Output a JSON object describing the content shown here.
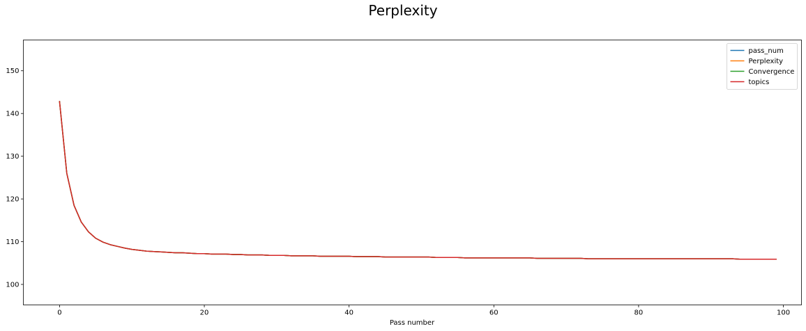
{
  "chart_data": {
    "type": "line",
    "title": "Perplexity",
    "xlabel": "Pass number",
    "ylabel": "",
    "xlim": [
      -5,
      102.5
    ],
    "ylim": [
      95.2,
      157.2
    ],
    "xticks": [
      0,
      20,
      40,
      60,
      80,
      100
    ],
    "yticks": [
      100,
      110,
      120,
      130,
      140,
      150
    ],
    "grid": false,
    "legend_position": "top-right",
    "x": [
      0,
      1,
      2,
      3,
      4,
      5,
      6,
      7,
      8,
      9,
      10,
      11,
      12,
      13,
      14,
      15,
      16,
      17,
      18,
      19,
      20,
      21,
      22,
      23,
      24,
      25,
      26,
      27,
      28,
      29,
      30,
      31,
      32,
      33,
      34,
      35,
      36,
      37,
      38,
      39,
      40,
      41,
      42,
      43,
      44,
      45,
      46,
      47,
      48,
      49,
      50,
      51,
      52,
      53,
      54,
      55,
      56,
      57,
      58,
      59,
      60,
      61,
      62,
      63,
      64,
      65,
      66,
      67,
      68,
      69,
      70,
      71,
      72,
      73,
      74,
      75,
      76,
      77,
      78,
      79,
      80,
      81,
      82,
      83,
      84,
      85,
      86,
      87,
      88,
      89,
      90,
      91,
      92,
      93,
      94,
      95,
      96,
      97,
      98,
      99
    ],
    "series": [
      {
        "name": "pass_num",
        "color": "#1f77b4",
        "values": [
          142.8,
          126.0,
          118.5,
          114.6,
          112.3,
          110.8,
          109.9,
          109.3,
          108.9,
          108.5,
          108.2,
          108.0,
          107.8,
          107.7,
          107.6,
          107.5,
          107.4,
          107.4,
          107.3,
          107.2,
          107.2,
          107.1,
          107.1,
          107.1,
          107.0,
          107.0,
          106.9,
          106.9,
          106.9,
          106.8,
          106.8,
          106.8,
          106.7,
          106.7,
          106.7,
          106.7,
          106.6,
          106.6,
          106.6,
          106.6,
          106.6,
          106.5,
          106.5,
          106.5,
          106.5,
          106.4,
          106.4,
          106.4,
          106.4,
          106.4,
          106.4,
          106.4,
          106.3,
          106.3,
          106.3,
          106.3,
          106.2,
          106.2,
          106.2,
          106.2,
          106.2,
          106.2,
          106.2,
          106.2,
          106.2,
          106.2,
          106.1,
          106.1,
          106.1,
          106.1,
          106.1,
          106.1,
          106.1,
          106.0,
          106.0,
          106.0,
          106.0,
          106.0,
          106.0,
          106.0,
          106.0,
          106.0,
          106.0,
          106.0,
          106.0,
          106.0,
          106.0,
          106.0,
          106.0,
          106.0,
          106.0,
          106.0,
          106.0,
          106.0,
          105.9,
          105.9,
          105.9,
          105.9,
          105.9,
          105.9
        ]
      },
      {
        "name": "Perplexity",
        "color": "#ff7f0e",
        "values": [
          142.8,
          126.0,
          118.5,
          114.6,
          112.3,
          110.8,
          109.9,
          109.3,
          108.9,
          108.5,
          108.2,
          108.0,
          107.8,
          107.7,
          107.6,
          107.5,
          107.4,
          107.4,
          107.3,
          107.2,
          107.2,
          107.1,
          107.1,
          107.1,
          107.0,
          107.0,
          106.9,
          106.9,
          106.9,
          106.8,
          106.8,
          106.8,
          106.7,
          106.7,
          106.7,
          106.7,
          106.6,
          106.6,
          106.6,
          106.6,
          106.6,
          106.5,
          106.5,
          106.5,
          106.5,
          106.4,
          106.4,
          106.4,
          106.4,
          106.4,
          106.4,
          106.4,
          106.3,
          106.3,
          106.3,
          106.3,
          106.2,
          106.2,
          106.2,
          106.2,
          106.2,
          106.2,
          106.2,
          106.2,
          106.2,
          106.2,
          106.1,
          106.1,
          106.1,
          106.1,
          106.1,
          106.1,
          106.1,
          106.0,
          106.0,
          106.0,
          106.0,
          106.0,
          106.0,
          106.0,
          106.0,
          106.0,
          106.0,
          106.0,
          106.0,
          106.0,
          106.0,
          106.0,
          106.0,
          106.0,
          106.0,
          106.0,
          106.0,
          106.0,
          105.9,
          105.9,
          105.9,
          105.9,
          105.9,
          105.9
        ]
      },
      {
        "name": "Convergence",
        "color": "#2ca02c",
        "values": [
          142.8,
          126.0,
          118.5,
          114.6,
          112.3,
          110.8,
          109.9,
          109.3,
          108.9,
          108.5,
          108.2,
          108.0,
          107.8,
          107.7,
          107.6,
          107.5,
          107.4,
          107.4,
          107.3,
          107.2,
          107.2,
          107.1,
          107.1,
          107.1,
          107.0,
          107.0,
          106.9,
          106.9,
          106.9,
          106.8,
          106.8,
          106.8,
          106.7,
          106.7,
          106.7,
          106.7,
          106.6,
          106.6,
          106.6,
          106.6,
          106.6,
          106.5,
          106.5,
          106.5,
          106.5,
          106.4,
          106.4,
          106.4,
          106.4,
          106.4,
          106.4,
          106.4,
          106.3,
          106.3,
          106.3,
          106.3,
          106.2,
          106.2,
          106.2,
          106.2,
          106.2,
          106.2,
          106.2,
          106.2,
          106.2,
          106.2,
          106.1,
          106.1,
          106.1,
          106.1,
          106.1,
          106.1,
          106.1,
          106.0,
          106.0,
          106.0,
          106.0,
          106.0,
          106.0,
          106.0,
          106.0,
          106.0,
          106.0,
          106.0,
          106.0,
          106.0,
          106.0,
          106.0,
          106.0,
          106.0,
          106.0,
          106.0,
          106.0,
          106.0,
          105.9,
          105.9,
          105.9,
          105.9,
          105.9,
          105.9
        ]
      },
      {
        "name": "topics",
        "color": "#d62728",
        "values": [
          142.8,
          126.0,
          118.5,
          114.6,
          112.3,
          110.8,
          109.9,
          109.3,
          108.9,
          108.5,
          108.2,
          108.0,
          107.8,
          107.7,
          107.6,
          107.5,
          107.4,
          107.4,
          107.3,
          107.2,
          107.2,
          107.1,
          107.1,
          107.1,
          107.0,
          107.0,
          106.9,
          106.9,
          106.9,
          106.8,
          106.8,
          106.8,
          106.7,
          106.7,
          106.7,
          106.7,
          106.6,
          106.6,
          106.6,
          106.6,
          106.6,
          106.5,
          106.5,
          106.5,
          106.5,
          106.4,
          106.4,
          106.4,
          106.4,
          106.4,
          106.4,
          106.4,
          106.3,
          106.3,
          106.3,
          106.3,
          106.2,
          106.2,
          106.2,
          106.2,
          106.2,
          106.2,
          106.2,
          106.2,
          106.2,
          106.2,
          106.1,
          106.1,
          106.1,
          106.1,
          106.1,
          106.1,
          106.1,
          106.0,
          106.0,
          106.0,
          106.0,
          106.0,
          106.0,
          106.0,
          106.0,
          106.0,
          106.0,
          106.0,
          106.0,
          106.0,
          106.0,
          106.0,
          106.0,
          106.0,
          106.0,
          106.0,
          106.0,
          106.0,
          105.9,
          105.9,
          105.9,
          105.9,
          105.9,
          105.9
        ]
      }
    ]
  }
}
